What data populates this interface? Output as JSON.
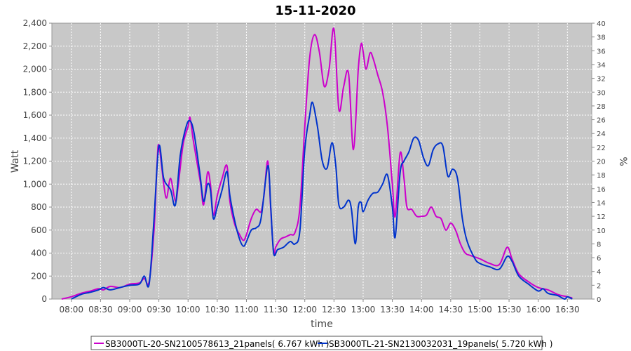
{
  "chart_data": {
    "type": "line",
    "title": "15-11-2020",
    "xlabel": "time",
    "ylabel": "Watt",
    "y2label": "%",
    "ylim": [
      0,
      2400
    ],
    "y2lim": [
      0,
      40
    ],
    "xlim": [
      "07:40",
      "16:55"
    ],
    "grid": true,
    "legend_position": "bottom",
    "x_ticks": [
      "08:00",
      "08:30",
      "09:00",
      "09:30",
      "10:00",
      "10:30",
      "11:00",
      "11:30",
      "12:00",
      "12:30",
      "13:00",
      "13:30",
      "14:00",
      "14:30",
      "15:00",
      "15:30",
      "16:00",
      "16:30"
    ],
    "y_ticks": [
      "0",
      "200",
      "400",
      "600",
      "800",
      "1,000",
      "1,200",
      "1,400",
      "1,600",
      "1,800",
      "2,000",
      "2,200",
      "2,400"
    ],
    "y2_ticks": [
      "0",
      "2",
      "4",
      "6",
      "8",
      "10",
      "12",
      "14",
      "16",
      "18",
      "20",
      "22",
      "24",
      "26",
      "28",
      "30",
      "32",
      "34",
      "36",
      "38",
      "40"
    ],
    "colors": {
      "plot_bg": "#c8c8c8",
      "grid": "#ffffff"
    },
    "series": [
      {
        "name": "SB3000TL-20-SN2100578613_21panels( 6.767 kWh )",
        "color": "#cc00cc",
        "points": [
          [
            "07:50",
            0
          ],
          [
            "08:00",
            20
          ],
          [
            "08:10",
            50
          ],
          [
            "08:20",
            70
          ],
          [
            "08:28",
            90
          ],
          [
            "08:33",
            80
          ],
          [
            "08:40",
            110
          ],
          [
            "08:50",
            100
          ],
          [
            "09:00",
            130
          ],
          [
            "09:10",
            140
          ],
          [
            "09:15",
            180
          ],
          [
            "09:20",
            150
          ],
          [
            "09:25",
            600
          ],
          [
            "09:28",
            1150
          ],
          [
            "09:30",
            1340
          ],
          [
            "09:35",
            1000
          ],
          [
            "09:38",
            880
          ],
          [
            "09:42",
            1050
          ],
          [
            "09:47",
            850
          ],
          [
            "09:50",
            1000
          ],
          [
            "09:55",
            1350
          ],
          [
            "10:00",
            1500
          ],
          [
            "10:02",
            1580
          ],
          [
            "10:05",
            1400
          ],
          [
            "10:08",
            1250
          ],
          [
            "10:13",
            1000
          ],
          [
            "10:16",
            820
          ],
          [
            "10:20",
            1100
          ],
          [
            "10:23",
            1000
          ],
          [
            "10:26",
            730
          ],
          [
            "10:30",
            900
          ],
          [
            "10:35",
            1050
          ],
          [
            "10:40",
            1160
          ],
          [
            "10:43",
            850
          ],
          [
            "10:48",
            650
          ],
          [
            "10:53",
            560
          ],
          [
            "10:57",
            510
          ],
          [
            "11:00",
            560
          ],
          [
            "11:05",
            700
          ],
          [
            "11:10",
            780
          ],
          [
            "11:15",
            760
          ],
          [
            "11:18",
            900
          ],
          [
            "11:22",
            1200
          ],
          [
            "11:25",
            780
          ],
          [
            "11:28",
            400
          ],
          [
            "11:30",
            450
          ],
          [
            "11:35",
            520
          ],
          [
            "11:40",
            540
          ],
          [
            "11:45",
            560
          ],
          [
            "11:50",
            580
          ],
          [
            "11:55",
            800
          ],
          [
            "12:00",
            1500
          ],
          [
            "12:05",
            2100
          ],
          [
            "12:10",
            2300
          ],
          [
            "12:15",
            2150
          ],
          [
            "12:20",
            1850
          ],
          [
            "12:25",
            2000
          ],
          [
            "12:30",
            2350
          ],
          [
            "12:35",
            1650
          ],
          [
            "12:40",
            1850
          ],
          [
            "12:45",
            1960
          ],
          [
            "12:50",
            1300
          ],
          [
            "12:55",
            2000
          ],
          [
            "12:58",
            2220
          ],
          [
            "13:00",
            2150
          ],
          [
            "13:03",
            2000
          ],
          [
            "13:07",
            2140
          ],
          [
            "13:10",
            2100
          ],
          [
            "13:15",
            1950
          ],
          [
            "13:20",
            1800
          ],
          [
            "13:25",
            1500
          ],
          [
            "13:30",
            1000
          ],
          [
            "13:33",
            720
          ],
          [
            "13:38",
            1270
          ],
          [
            "13:42",
            1050
          ],
          [
            "13:45",
            800
          ],
          [
            "13:50",
            780
          ],
          [
            "13:55",
            720
          ],
          [
            "14:00",
            720
          ],
          [
            "14:05",
            730
          ],
          [
            "14:10",
            800
          ],
          [
            "14:15",
            720
          ],
          [
            "14:20",
            700
          ],
          [
            "14:25",
            600
          ],
          [
            "14:30",
            660
          ],
          [
            "14:35",
            600
          ],
          [
            "14:40",
            480
          ],
          [
            "14:45",
            400
          ],
          [
            "14:50",
            380
          ],
          [
            "15:00",
            350
          ],
          [
            "15:10",
            310
          ],
          [
            "15:20",
            300
          ],
          [
            "15:28",
            450
          ],
          [
            "15:33",
            350
          ],
          [
            "15:40",
            220
          ],
          [
            "15:50",
            150
          ],
          [
            "16:00",
            100
          ],
          [
            "16:10",
            80
          ],
          [
            "16:20",
            40
          ],
          [
            "16:30",
            20
          ],
          [
            "16:35",
            10
          ]
        ]
      },
      {
        "name": "SB3000TL-21-SN2130032031_19panels( 5.720 kWh )",
        "color": "#0033cc",
        "points": [
          [
            "08:00",
            0
          ],
          [
            "08:10",
            40
          ],
          [
            "08:20",
            60
          ],
          [
            "08:28",
            80
          ],
          [
            "08:33",
            100
          ],
          [
            "08:40",
            80
          ],
          [
            "08:50",
            100
          ],
          [
            "09:00",
            120
          ],
          [
            "09:10",
            130
          ],
          [
            "09:15",
            200
          ],
          [
            "09:20",
            130
          ],
          [
            "09:25",
            700
          ],
          [
            "09:30",
            1330
          ],
          [
            "09:35",
            1050
          ],
          [
            "09:42",
            950
          ],
          [
            "09:47",
            820
          ],
          [
            "09:52",
            1250
          ],
          [
            "09:58",
            1500
          ],
          [
            "10:02",
            1550
          ],
          [
            "10:06",
            1450
          ],
          [
            "10:12",
            1100
          ],
          [
            "10:16",
            850
          ],
          [
            "10:20",
            1000
          ],
          [
            "10:23",
            950
          ],
          [
            "10:26",
            700
          ],
          [
            "10:30",
            800
          ],
          [
            "10:35",
            950
          ],
          [
            "10:40",
            1110
          ],
          [
            "10:43",
            900
          ],
          [
            "10:48",
            680
          ],
          [
            "10:53",
            520
          ],
          [
            "10:57",
            460
          ],
          [
            "11:00",
            500
          ],
          [
            "11:05",
            600
          ],
          [
            "11:10",
            620
          ],
          [
            "11:15",
            700
          ],
          [
            "11:22",
            1160
          ],
          [
            "11:25",
            800
          ],
          [
            "11:28",
            400
          ],
          [
            "11:32",
            430
          ],
          [
            "11:38",
            450
          ],
          [
            "11:45",
            500
          ],
          [
            "11:50",
            480
          ],
          [
            "11:55",
            600
          ],
          [
            "12:00",
            1300
          ],
          [
            "12:05",
            1600
          ],
          [
            "12:08",
            1710
          ],
          [
            "12:13",
            1500
          ],
          [
            "12:18",
            1200
          ],
          [
            "12:23",
            1140
          ],
          [
            "12:28",
            1360
          ],
          [
            "12:32",
            1150
          ],
          [
            "12:35",
            820
          ],
          [
            "12:40",
            800
          ],
          [
            "12:45",
            860
          ],
          [
            "12:48",
            780
          ],
          [
            "12:52",
            480
          ],
          [
            "12:55",
            800
          ],
          [
            "12:58",
            840
          ],
          [
            "13:00",
            760
          ],
          [
            "13:05",
            860
          ],
          [
            "13:10",
            920
          ],
          [
            "13:15",
            930
          ],
          [
            "13:20",
            1000
          ],
          [
            "13:25",
            1080
          ],
          [
            "13:30",
            800
          ],
          [
            "13:33",
            540
          ],
          [
            "13:38",
            1100
          ],
          [
            "13:42",
            1200
          ],
          [
            "13:47",
            1280
          ],
          [
            "13:52",
            1400
          ],
          [
            "13:57",
            1380
          ],
          [
            "14:02",
            1230
          ],
          [
            "14:07",
            1160
          ],
          [
            "14:12",
            1300
          ],
          [
            "14:17",
            1350
          ],
          [
            "14:22",
            1330
          ],
          [
            "14:27",
            1070
          ],
          [
            "14:32",
            1130
          ],
          [
            "14:37",
            1050
          ],
          [
            "14:42",
            700
          ],
          [
            "14:47",
            500
          ],
          [
            "14:55",
            350
          ],
          [
            "15:00",
            310
          ],
          [
            "15:10",
            280
          ],
          [
            "15:20",
            260
          ],
          [
            "15:28",
            370
          ],
          [
            "15:33",
            330
          ],
          [
            "15:40",
            200
          ],
          [
            "15:50",
            130
          ],
          [
            "16:00",
            70
          ],
          [
            "16:05",
            90
          ],
          [
            "16:10",
            50
          ],
          [
            "16:20",
            30
          ],
          [
            "16:27",
            0
          ],
          [
            "16:30",
            20
          ],
          [
            "16:35",
            0
          ]
        ]
      }
    ]
  }
}
